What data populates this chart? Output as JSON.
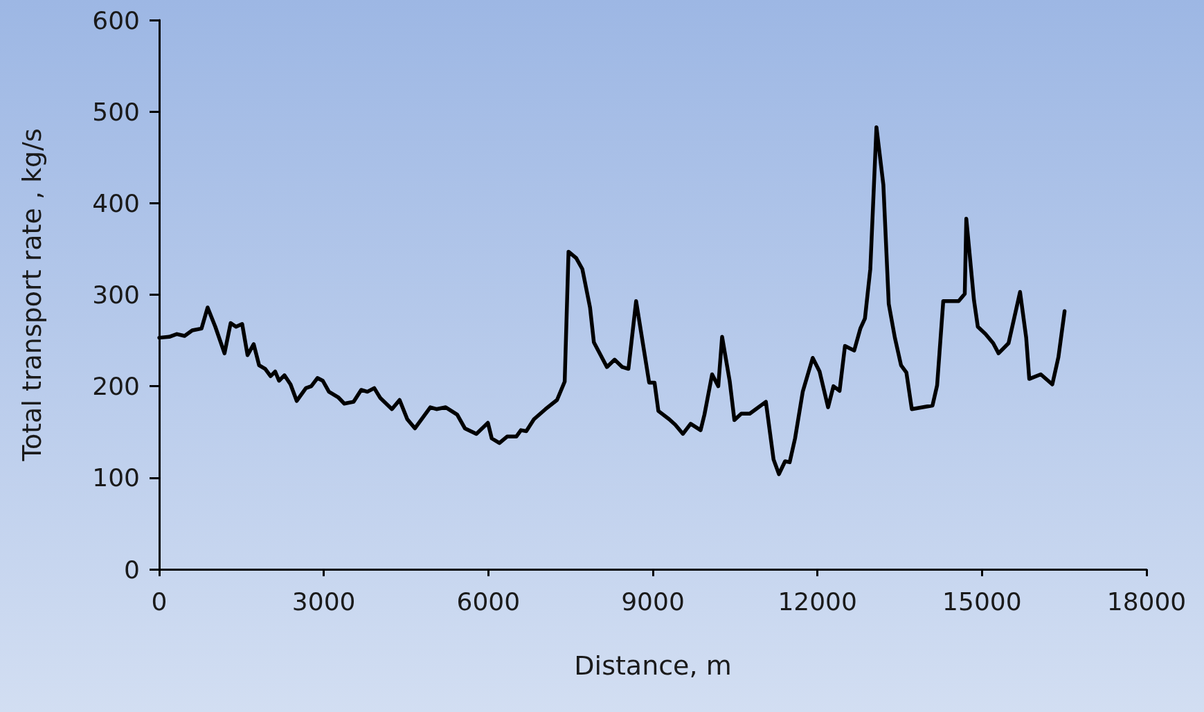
{
  "chart_data": {
    "type": "line",
    "xlabel": "Distance, m",
    "ylabel": "Total transport rate , kg/s",
    "xlim": [
      0,
      18000
    ],
    "xticks": [
      0,
      3000,
      6000,
      9000,
      12000,
      15000,
      18000
    ],
    "ylim": [
      0,
      600
    ],
    "yticks": [
      0,
      100,
      200,
      300,
      400,
      500,
      600
    ],
    "grid": false,
    "marker": "none",
    "line_style": "solid",
    "series": [
      {
        "color": "#000000",
        "x": [
          0,
          182,
          322,
          462,
          602,
          770,
          882,
          1022,
          1190,
          1302,
          1400,
          1512,
          1610,
          1722,
          1820,
          1932,
          2030,
          2114,
          2184,
          2282,
          2394,
          2506,
          2674,
          2772,
          2884,
          2982,
          3094,
          3262,
          3374,
          3542,
          3682,
          3794,
          3920,
          4032,
          4242,
          4382,
          4522,
          4662,
          4942,
          5054,
          5222,
          5432,
          5572,
          5782,
          5992,
          6062,
          6202,
          6342,
          6510,
          6594,
          6692,
          6832,
          7042,
          7252,
          7392,
          7462,
          7602,
          7714,
          7854,
          7924,
          8162,
          8302,
          8442,
          8554,
          8694,
          8932,
          9030,
          9100,
          9296,
          9408,
          9548,
          9688,
          9870,
          9940,
          10080,
          10192,
          10262,
          10402,
          10486,
          10612,
          10766,
          10878,
          11060,
          11200,
          11298,
          11410,
          11494,
          11592,
          11732,
          11914,
          12040,
          12194,
          12292,
          12404,
          12502,
          12670,
          12782,
          12866,
          12964,
          13076,
          13202,
          13300,
          13412,
          13524,
          13622,
          13720,
          13916,
          14098,
          14182,
          14294,
          14574,
          14686,
          14714,
          14854,
          14924,
          15064,
          15204,
          15302,
          15484,
          15694,
          15806,
          15862,
          16072,
          16282,
          16394,
          16506
        ],
        "values": [
          253,
          254,
          257,
          255,
          261,
          263,
          286,
          265,
          236,
          269,
          265,
          268,
          234,
          246,
          223,
          219,
          211,
          216,
          206,
          212,
          202,
          184,
          198,
          200,
          209,
          206,
          194,
          188,
          181,
          183,
          196,
          194,
          198,
          187,
          175,
          185,
          164,
          154,
          177,
          175,
          177,
          169,
          154,
          148,
          160,
          143,
          138,
          145,
          145,
          152,
          151,
          164,
          175,
          185,
          205,
          347,
          340,
          328,
          286,
          248,
          221,
          229,
          221,
          219,
          293,
          204,
          204,
          173,
          164,
          158,
          148,
          159,
          152,
          169,
          213,
          200,
          254,
          205,
          163,
          170,
          170,
          175,
          183,
          120,
          104,
          118,
          117,
          143,
          194,
          231,
          216,
          177,
          200,
          195,
          244,
          239,
          263,
          274,
          328,
          483,
          420,
          290,
          253,
          223,
          215,
          175,
          177,
          179,
          201,
          293,
          293,
          301,
          383,
          294,
          265,
          257,
          247,
          236,
          247,
          303,
          253,
          208,
          213,
          202,
          232,
          282
        ]
      }
    ]
  }
}
